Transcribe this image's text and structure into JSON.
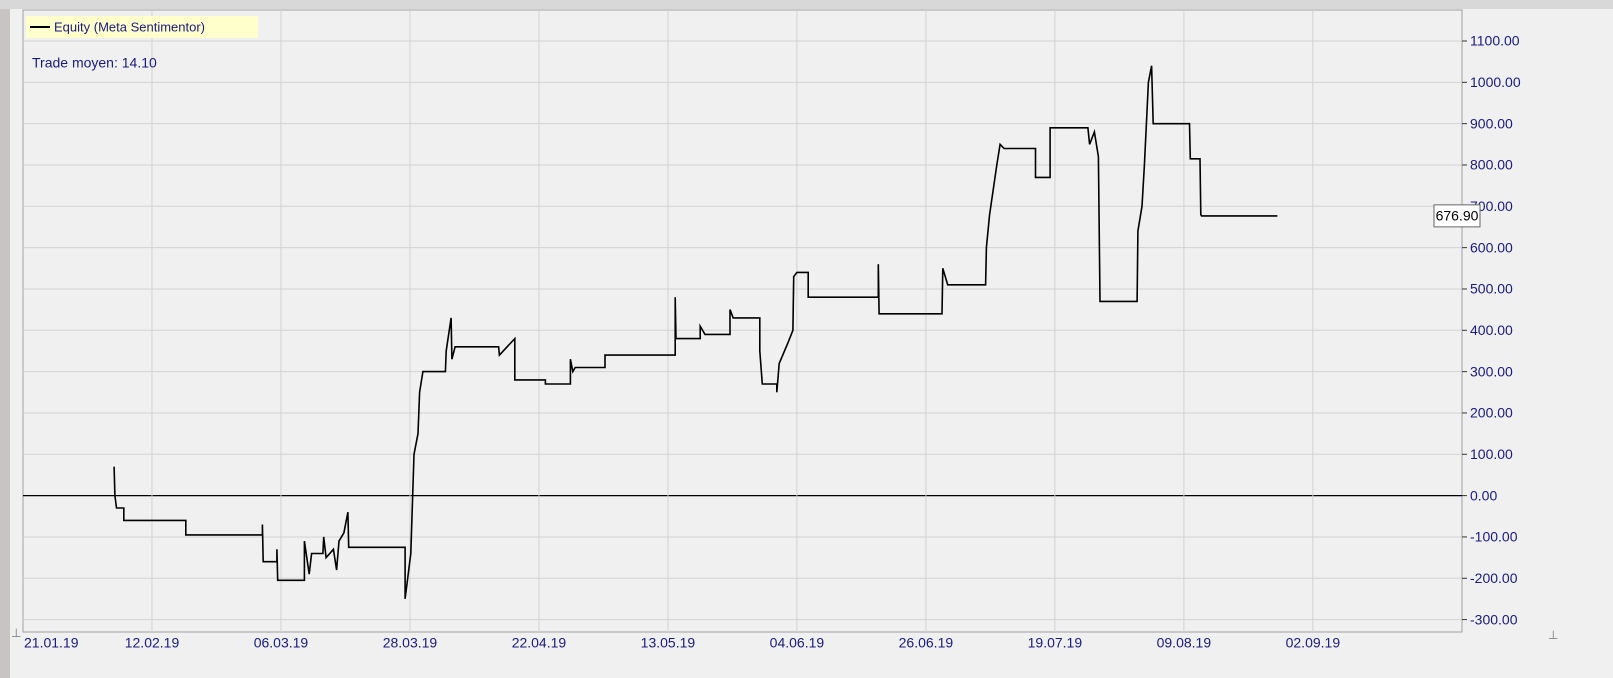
{
  "chart_data": {
    "type": "line",
    "legend": "Equity (Meta Sentimentor)",
    "annotation": "Trade moyen: 14.10",
    "current_label": "676.90",
    "series": [
      {
        "name": "Equity (Meta Sentimentor)",
        "color": "#000000",
        "x": [
          11.3,
          11.4,
          11.6,
          12.5,
          12.5,
          20.2,
          20.2,
          29.7,
          29.7,
          29.8,
          31.5,
          31.5,
          31.6,
          34.9,
          34.9,
          35.5,
          35.8,
          37.2,
          37.3,
          37.6,
          38.5,
          38.9,
          39.2,
          39.8,
          40.3,
          40.4,
          47.4,
          47.4,
          48.1,
          48.5,
          49,
          49.2,
          49.6,
          52.4,
          52.5,
          53.1,
          53.2,
          53.6,
          59,
          59.1,
          61,
          61,
          64.8,
          64.8,
          67.9,
          67.9,
          68.2,
          68.5,
          72.2,
          72.2,
          80.9,
          80.9,
          81,
          84,
          84,
          84.6,
          87.7,
          87.7,
          88.1,
          91.4,
          91.4,
          91.7,
          93.5,
          93.5,
          93.8,
          94.9,
          95.5,
          95.6,
          96,
          97.4,
          97.4,
          106.1,
          106.1,
          106.2,
          114,
          114.1,
          114.7,
          119.4,
          119.5,
          119.9,
          120.8,
          121.2,
          121.7,
          125.6,
          125.6,
          127.4,
          127.4,
          132.1,
          132.3,
          132.9,
          133.4,
          133.6,
          138.2,
          138.3,
          138.8,
          139.1,
          139.6,
          140,
          140.2,
          144.7,
          144.8,
          146,
          146.1,
          146.2,
          155.6
        ],
        "values": [
          70,
          0,
          -30,
          -30,
          -60,
          -60,
          -95,
          -95,
          -70,
          -160,
          -160,
          -130,
          -205,
          -205,
          -110,
          -190,
          -140,
          -140,
          -100,
          -150,
          -130,
          -180,
          -110,
          -90,
          -40,
          -125,
          -125,
          -250,
          -140,
          100,
          150,
          250,
          300,
          300,
          350,
          430,
          330,
          360,
          360,
          340,
          380,
          280,
          280,
          270,
          270,
          330,
          300,
          310,
          310,
          340,
          340,
          480,
          380,
          380,
          410,
          390,
          390,
          450,
          430,
          430,
          350,
          270,
          270,
          250,
          320,
          370,
          400,
          530,
          540,
          540,
          480,
          480,
          560,
          440,
          440,
          550,
          510,
          510,
          600,
          680,
          800,
          850,
          840,
          840,
          770,
          770,
          890,
          890,
          850,
          880,
          820,
          470,
          470,
          640,
          700,
          800,
          1000,
          1040,
          900,
          900,
          815,
          815,
          680,
          676.9,
          676.9
        ]
      }
    ],
    "xlim": [
      0,
      178.5
    ],
    "xticks": [
      {
        "value": 0,
        "label": "21.01.19"
      },
      {
        "value": 16,
        "label": "12.02.19"
      },
      {
        "value": 32,
        "label": "06.03.19"
      },
      {
        "value": 48,
        "label": "28.03.19"
      },
      {
        "value": 64,
        "label": "22.04.19"
      },
      {
        "value": 80,
        "label": "13.05.19"
      },
      {
        "value": 96,
        "label": "04.06.19"
      },
      {
        "value": 112,
        "label": "26.06.19"
      },
      {
        "value": 128,
        "label": "19.07.19"
      },
      {
        "value": 144,
        "label": "09.08.19"
      },
      {
        "value": 160,
        "label": "02.09.19"
      }
    ],
    "ylim": [
      -330,
      1175
    ],
    "yticks": [
      {
        "value": -300,
        "label": "-300.00"
      },
      {
        "value": -200,
        "label": "-200.00"
      },
      {
        "value": -100,
        "label": "-100.00"
      },
      {
        "value": 0,
        "label": "0.00"
      },
      {
        "value": 100,
        "label": "100.00"
      },
      {
        "value": 200,
        "label": "200.00"
      },
      {
        "value": 300,
        "label": "300.00"
      },
      {
        "value": 400,
        "label": "400.00"
      },
      {
        "value": 500,
        "label": "500.00"
      },
      {
        "value": 600,
        "label": "600.00"
      },
      {
        "value": 700,
        "label": "700.00"
      },
      {
        "value": 800,
        "label": "800.00"
      },
      {
        "value": 900,
        "label": "900.00"
      },
      {
        "value": 1000,
        "label": "1000.00"
      },
      {
        "value": 1100,
        "label": "1100.00"
      }
    ],
    "grid": true
  }
}
